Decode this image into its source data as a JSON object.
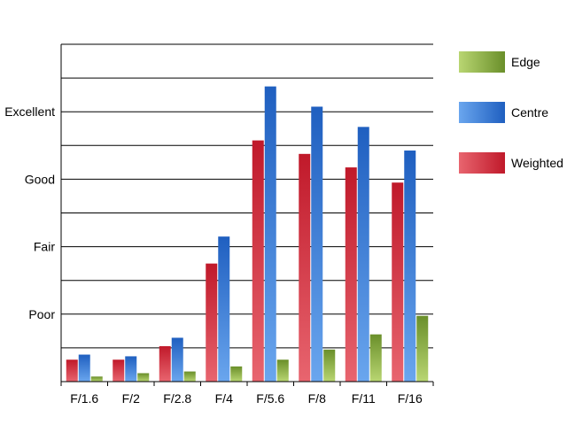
{
  "chart_data": {
    "type": "bar",
    "categories": [
      "F/1.6",
      "F/2",
      "F/2.8",
      "F/4",
      "F/5.6",
      "F/8",
      "F/11",
      "F/16"
    ],
    "series": [
      {
        "name": "Weighted",
        "values": [
          0.65,
          0.65,
          1.05,
          3.5,
          7.15,
          6.75,
          6.35,
          5.9
        ],
        "color": "#c0192a",
        "color_light": "#e8656f"
      },
      {
        "name": "Centre",
        "values": [
          0.8,
          0.75,
          1.3,
          4.3,
          8.75,
          8.15,
          7.55,
          6.85
        ],
        "color": "#1f5fc0",
        "color_light": "#6aa6ee"
      },
      {
        "name": "Edge",
        "values": [
          0.15,
          0.25,
          0.3,
          0.45,
          0.65,
          0.95,
          1.4,
          1.95
        ],
        "color": "#6a8f2a",
        "color_light": "#b9d672"
      }
    ],
    "legend_order": [
      "Edge",
      "Centre",
      "Weighted"
    ],
    "y_tick_labels": [
      {
        "value": 2,
        "label": "Poor"
      },
      {
        "value": 4,
        "label": "Fair"
      },
      {
        "value": 6,
        "label": "Good"
      },
      {
        "value": 8,
        "label": "Excellent"
      }
    ],
    "ylim": [
      0,
      10
    ],
    "gridlines": [
      1,
      2,
      3,
      4,
      5,
      6,
      7,
      8,
      9,
      10
    ],
    "grid": true,
    "legend_position": "right",
    "title": "",
    "xlabel": "",
    "ylabel": ""
  }
}
